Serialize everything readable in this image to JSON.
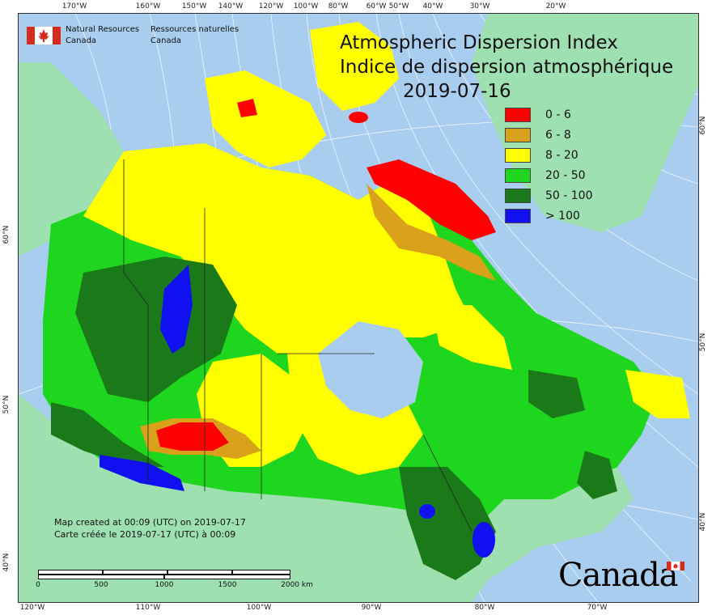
{
  "map": {
    "title_en": "Atmospheric Dispersion Index",
    "title_fr": "Indice de dispersion atmosphérique",
    "date": "2019-07-16",
    "agency_en": [
      "Natural Resources",
      "Canada"
    ],
    "agency_fr": [
      "Ressources naturelles",
      "Canada"
    ],
    "credit_en": "Map created at 00:09 (UTC) on 2019-07-17",
    "credit_fr": "Carte créée le 2019-07-17 (UTC) à 00:09",
    "wordmark": "Canada",
    "legend": [
      {
        "label": "0 - 6",
        "color": "#ff0000"
      },
      {
        "label": "6 - 8",
        "color": "#d9a11a"
      },
      {
        "label": "8 - 20",
        "color": "#ffff00"
      },
      {
        "label": "20 - 50",
        "color": "#1ed61e"
      },
      {
        "label": "50 - 100",
        "color": "#1a7a1a"
      },
      {
        "label": "> 100",
        "color": "#1010f0"
      }
    ],
    "scale": {
      "labels": [
        "0",
        "500",
        "1000",
        "1500",
        "2000 km"
      ]
    },
    "colors": {
      "ocean": "#a9cdee",
      "foreign_land": "#9ee0b0",
      "lakes": "#a9cdee"
    },
    "graticule": {
      "top": [
        "170°W",
        "160°W",
        "150°W",
        "140°W",
        "120°W",
        "100°W",
        "80°W",
        "60°W",
        "50°W",
        "40°W",
        "30°W",
        "20°W"
      ],
      "bottom": [
        "120°W",
        "110°W",
        "100°W",
        "90°W",
        "80°W",
        "70°W"
      ],
      "left": [
        "60°N",
        "50°N",
        "40°N"
      ],
      "right": [
        "60°N",
        "50°N",
        "40°N"
      ]
    }
  }
}
